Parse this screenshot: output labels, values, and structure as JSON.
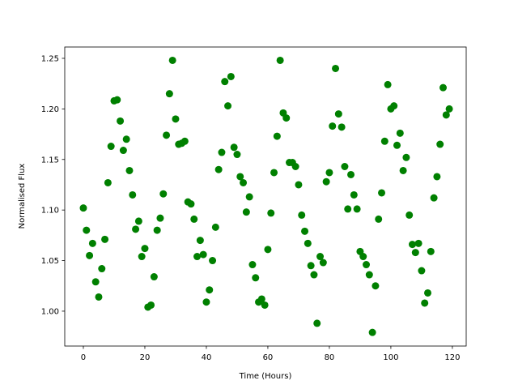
{
  "chart_data": {
    "type": "scatter",
    "xlabel": "Time (Hours)",
    "ylabel": "Normalised Flux",
    "color": "#008000",
    "x": [
      0,
      1,
      2,
      3,
      4,
      5,
      6,
      7,
      8,
      9,
      10,
      11,
      12,
      13,
      14,
      15,
      16,
      17,
      18,
      19,
      20,
      21,
      22,
      23,
      24,
      25,
      26,
      27,
      28,
      29,
      30,
      31,
      32,
      33,
      34,
      35,
      36,
      37,
      38,
      39,
      40,
      41,
      42,
      43,
      44,
      45,
      46,
      47,
      48,
      49,
      50,
      51,
      52,
      53,
      54,
      55,
      56,
      57,
      58,
      59,
      60,
      61,
      62,
      63,
      64,
      65,
      66,
      67,
      68,
      69,
      70,
      71,
      72,
      73,
      74,
      75,
      76,
      77,
      78,
      79,
      80,
      81,
      82,
      83,
      84,
      85,
      86,
      87,
      88,
      89,
      90,
      91,
      92,
      93,
      94,
      95,
      96,
      97,
      98,
      99,
      100,
      101,
      102,
      103,
      104,
      105,
      106,
      107,
      108,
      109,
      110,
      111,
      112,
      113,
      114,
      115,
      116,
      117,
      118,
      119
    ],
    "values": [
      1.102,
      1.08,
      1.055,
      1.067,
      1.029,
      1.014,
      1.042,
      1.071,
      1.127,
      1.163,
      1.208,
      1.209,
      1.188,
      1.159,
      1.17,
      1.139,
      1.115,
      1.081,
      1.089,
      1.054,
      1.062,
      1.004,
      1.006,
      1.034,
      1.08,
      1.092,
      1.116,
      1.174,
      1.215,
      1.248,
      1.19,
      1.165,
      1.166,
      1.168,
      1.108,
      1.106,
      1.091,
      1.054,
      1.07,
      1.056,
      1.009,
      1.021,
      1.05,
      1.083,
      1.14,
      1.157,
      1.227,
      1.203,
      1.232,
      1.162,
      1.155,
      1.133,
      1.127,
      1.098,
      1.113,
      1.046,
      1.033,
      1.009,
      1.012,
      1.006,
      1.061,
      1.097,
      1.137,
      1.173,
      1.248,
      1.196,
      1.191,
      1.147,
      1.147,
      1.143,
      1.125,
      1.095,
      1.079,
      1.067,
      1.045,
      1.036,
      0.988,
      1.054,
      1.048,
      1.128,
      1.137,
      1.183,
      1.24,
      1.195,
      1.182,
      1.143,
      1.101,
      1.135,
      1.115,
      1.101,
      1.059,
      1.054,
      1.046,
      1.036,
      0.979,
      1.025,
      1.091,
      1.117,
      1.168,
      1.224,
      1.2,
      1.203,
      1.164,
      1.176,
      1.139,
      1.152,
      1.095,
      1.066,
      1.058,
      1.067,
      1.04,
      1.008,
      1.018,
      1.059,
      1.112,
      1.133,
      1.165,
      1.221,
      1.194,
      1.2
    ],
    "xlim": [
      -6.05,
      124.5
    ],
    "xticks": [
      0,
      20,
      40,
      60,
      80,
      100,
      120
    ],
    "ylim": [
      0.9655,
      1.2612
    ],
    "yticks": [
      {
        "value": 1,
        "label": "1.00"
      },
      1.05,
      {
        "value": 1.1,
        "label": "1.10"
      },
      1.15,
      {
        "value": 1.2,
        "label": "1.20"
      },
      1.25
    ],
    "grid": false
  }
}
